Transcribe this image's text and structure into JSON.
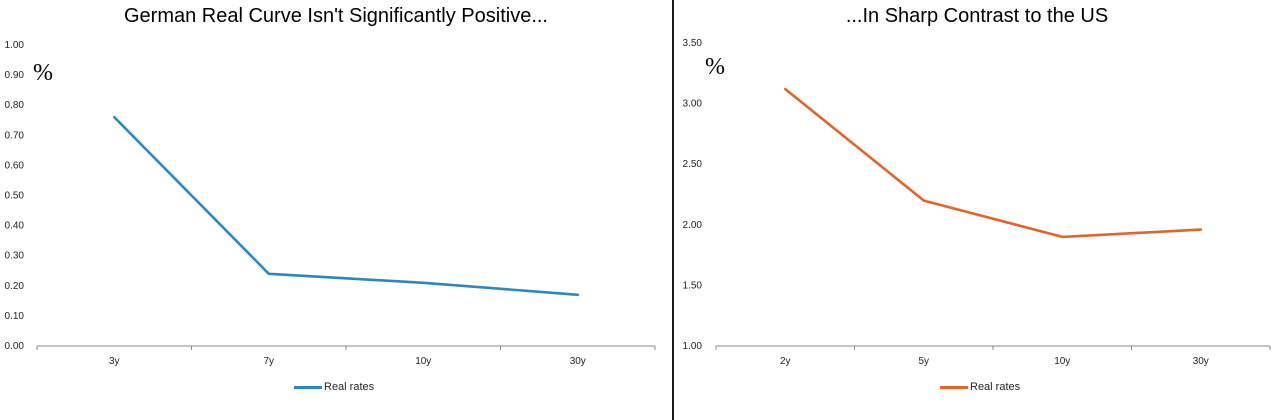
{
  "chart_data": [
    {
      "type": "line",
      "title": "German Real Curve Isn't Significantly Positive...",
      "unit_label": "%",
      "categories": [
        "3y",
        "7y",
        "10y",
        "30y"
      ],
      "series": [
        {
          "name": "Real rates",
          "values": [
            0.76,
            0.24,
            0.21,
            0.17
          ],
          "color": "#2e86c1"
        }
      ],
      "ylim": [
        0,
        1.0
      ],
      "yticks": [
        "0.00",
        "0.10",
        "0.20",
        "0.30",
        "0.40",
        "0.50",
        "0.60",
        "0.70",
        "0.80",
        "0.90",
        "1.00"
      ],
      "grid": false,
      "legend_position": "bottom"
    },
    {
      "type": "line",
      "title": "...In Sharp Contrast to the US",
      "unit_label": "%",
      "categories": [
        "2y",
        "5y",
        "10y",
        "30y"
      ],
      "series": [
        {
          "name": "Real rates",
          "values": [
            3.12,
            2.2,
            1.9,
            1.96
          ],
          "color": "#e0642c"
        }
      ],
      "ylim": [
        1.0,
        3.5
      ],
      "yticks": [
        "1.00",
        "1.50",
        "2.00",
        "2.50",
        "3.00",
        "3.50"
      ],
      "grid": false,
      "legend_position": "bottom"
    }
  ]
}
